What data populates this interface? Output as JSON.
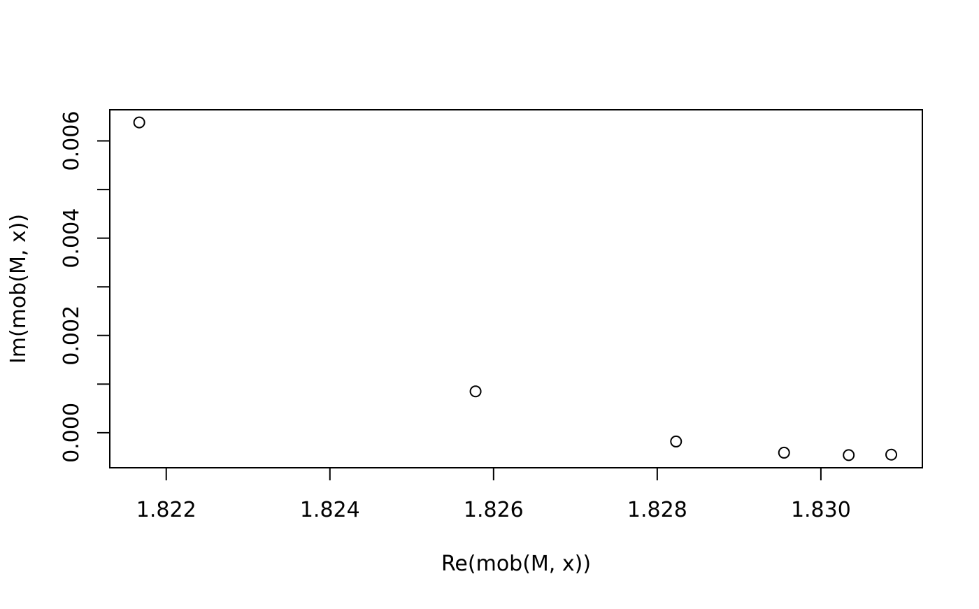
{
  "chart_data": {
    "type": "scatter",
    "title": "",
    "xlabel": "Re(mob(M, x))",
    "ylabel": "Im(mob(M, x))",
    "xlim": [
      1.82131,
      1.83124
    ],
    "ylim": [
      -0.00072,
      0.00664
    ],
    "x_ticks": [
      1.822,
      1.824,
      1.826,
      1.828,
      1.83
    ],
    "x_tick_labels": [
      "1.822",
      "1.824",
      "1.826",
      "1.828",
      "1.830"
    ],
    "y_ticks": [
      0.0,
      0.001,
      0.002,
      0.003,
      0.004,
      0.005,
      0.006
    ],
    "y_tick_labels": [
      "0.000",
      "",
      "0.002",
      "",
      "0.004",
      "",
      "0.006"
    ],
    "marker": "open-circle",
    "grid": false,
    "legend": "none",
    "series": [
      {
        "x": [
          1.82167,
          1.82578,
          1.82823,
          1.82955,
          1.83034,
          1.83086
        ],
        "y": [
          0.00638,
          0.00085,
          -0.00018,
          -0.00041,
          -0.00046,
          -0.00045
        ]
      }
    ]
  }
}
